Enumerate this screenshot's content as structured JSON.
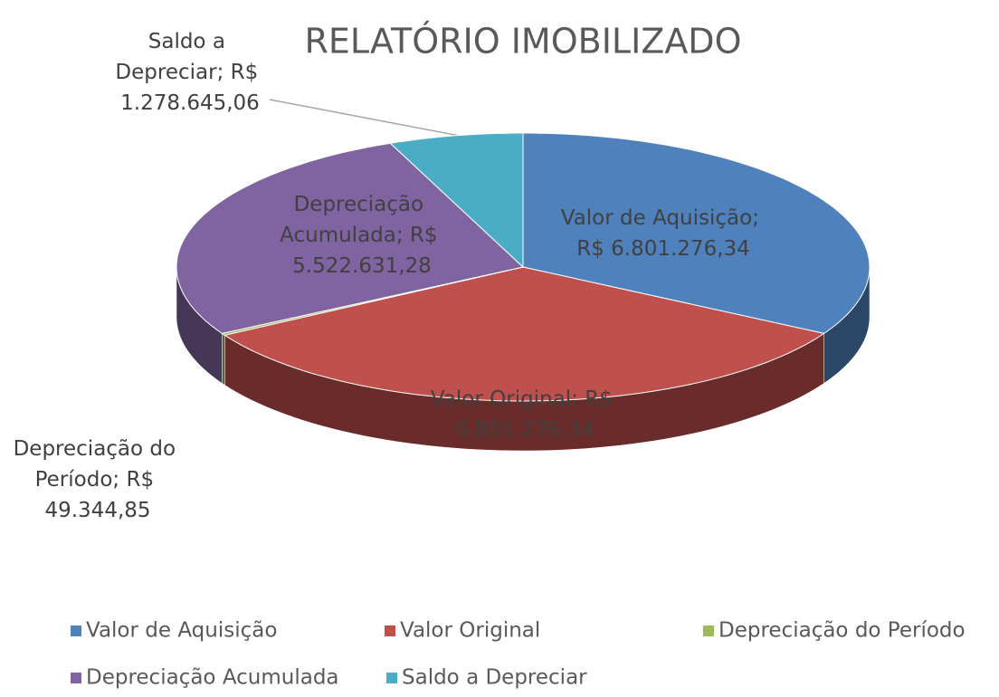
{
  "chart_data": {
    "type": "pie3d",
    "title": "RELATÓRIO IMOBILIZADO",
    "categories": [
      "Valor de Aquisição",
      "Valor Original",
      "Depreciação do Período",
      "Depreciação Acumulada",
      "Saldo a Depreciar"
    ],
    "values": [
      6801276.34,
      6801276.34,
      49344.85,
      5522631.28,
      1278645.06
    ],
    "value_labels": [
      "Valor de Aquisição; R$ 6.801.276,34",
      "Valor Original; R$ 6.801.276,34",
      "Depreciação do Período; R$ 49.344,85",
      "Depreciação Acumulada; R$ 5.522.631,28",
      "Saldo a Depreciar; R$ 1.278.645,06"
    ],
    "colors": [
      "#4f81bd",
      "#c0504d",
      "#9bbb59",
      "#8064a2",
      "#4bacc6"
    ],
    "legend": "bottom"
  }
}
